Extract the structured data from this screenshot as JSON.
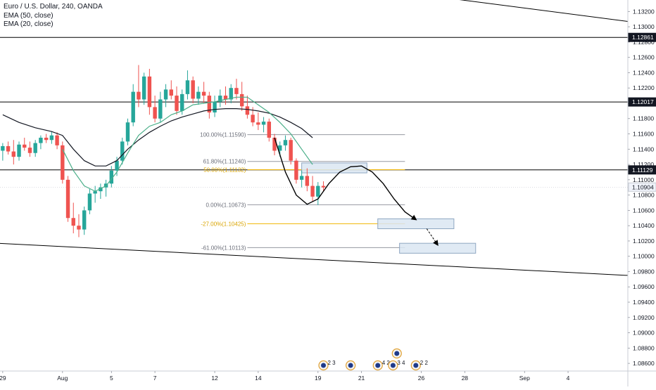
{
  "header": {
    "title": "Euro / U.S. Dollar, 240, OANDA",
    "indicators": [
      "EMA (50, close)",
      "EMA (20, close)"
    ]
  },
  "colors": {
    "up": "#26a69a",
    "down": "#ef5350",
    "ema50": "#131722",
    "ema20": "#4caf8a",
    "fib_line": "#9598a1",
    "fib_gold": "#f0b400",
    "box_fill": "#dbe6f2",
    "box_stroke": "#8fa7c2",
    "hline": "#000000",
    "price_tag_dark": "#131722"
  },
  "price_axis": {
    "ticks": [
      "1.13200",
      "1.13000",
      "1.12800",
      "1.12600",
      "1.12400",
      "1.12200",
      "1.12000",
      "1.11800",
      "1.11600",
      "1.11400",
      "1.11200",
      "1.11000",
      "1.10800",
      "1.10600",
      "1.10400",
      "1.10200",
      "1.10000",
      "1.09800",
      "1.09600",
      "1.09400",
      "1.09200",
      "1.09000",
      "1.08800",
      "1.08600"
    ],
    "tags": [
      {
        "value": 1.12861,
        "label": "1.12861",
        "style": "dark"
      },
      {
        "value": 1.12017,
        "label": "1.12017",
        "style": "dark"
      },
      {
        "value": 1.11129,
        "label": "1.11129",
        "style": "dark"
      },
      {
        "value": 1.10904,
        "label": "1.10904",
        "style": "light"
      }
    ]
  },
  "time_axis": {
    "labels": [
      {
        "index": 0,
        "text": "29"
      },
      {
        "index": 11,
        "text": "Aug"
      },
      {
        "index": 20,
        "text": "5"
      },
      {
        "index": 28,
        "text": "7"
      },
      {
        "index": 39,
        "text": "12"
      },
      {
        "index": 47,
        "text": "14"
      },
      {
        "index": 58,
        "text": "19"
      },
      {
        "index": 66,
        "text": "21"
      },
      {
        "index": 77,
        "text": "26"
      },
      {
        "index": 85,
        "text": "28"
      },
      {
        "index": 96,
        "text": "Sep"
      },
      {
        "index": 104,
        "text": "4"
      }
    ]
  },
  "chart_data": {
    "type": "candlestick",
    "title": "Euro / U.S. Dollar, 240, OANDA",
    "ylim": [
      1.085,
      1.1335
    ],
    "x_range_index": [
      -0.5,
      115
    ],
    "candles": [
      {
        "o": 1.1138,
        "h": 1.1148,
        "l": 1.1125,
        "c": 1.1144
      },
      {
        "o": 1.1144,
        "h": 1.115,
        "l": 1.1133,
        "c": 1.1137
      },
      {
        "o": 1.1137,
        "h": 1.1152,
        "l": 1.112,
        "c": 1.113
      },
      {
        "o": 1.113,
        "h": 1.115,
        "l": 1.1125,
        "c": 1.1146
      },
      {
        "o": 1.1146,
        "h": 1.1155,
        "l": 1.1138,
        "c": 1.1142
      },
      {
        "o": 1.1142,
        "h": 1.115,
        "l": 1.113,
        "c": 1.1135
      },
      {
        "o": 1.1135,
        "h": 1.1152,
        "l": 1.113,
        "c": 1.1148
      },
      {
        "o": 1.1148,
        "h": 1.1158,
        "l": 1.114,
        "c": 1.1155
      },
      {
        "o": 1.1155,
        "h": 1.116,
        "l": 1.1148,
        "c": 1.1152
      },
      {
        "o": 1.1152,
        "h": 1.1163,
        "l": 1.1147,
        "c": 1.1158
      },
      {
        "o": 1.1158,
        "h": 1.1162,
        "l": 1.114,
        "c": 1.1145
      },
      {
        "o": 1.1145,
        "h": 1.115,
        "l": 1.1095,
        "c": 1.11
      },
      {
        "o": 1.11,
        "h": 1.1105,
        "l": 1.1045,
        "c": 1.105
      },
      {
        "o": 1.105,
        "h": 1.107,
        "l": 1.103,
        "c": 1.104
      },
      {
        "o": 1.104,
        "h": 1.1055,
        "l": 1.1025,
        "c": 1.1035
      },
      {
        "o": 1.1035,
        "h": 1.1065,
        "l": 1.1028,
        "c": 1.106
      },
      {
        "o": 1.106,
        "h": 1.1088,
        "l": 1.1055,
        "c": 1.1082
      },
      {
        "o": 1.1082,
        "h": 1.1092,
        "l": 1.107,
        "c": 1.1085
      },
      {
        "o": 1.1085,
        "h": 1.1095,
        "l": 1.1075,
        "c": 1.109
      },
      {
        "o": 1.109,
        "h": 1.11,
        "l": 1.1078,
        "c": 1.1095
      },
      {
        "o": 1.1095,
        "h": 1.1118,
        "l": 1.109,
        "c": 1.1112
      },
      {
        "o": 1.1112,
        "h": 1.113,
        "l": 1.1105,
        "c": 1.1125
      },
      {
        "o": 1.1125,
        "h": 1.1155,
        "l": 1.112,
        "c": 1.115
      },
      {
        "o": 1.115,
        "h": 1.118,
        "l": 1.1145,
        "c": 1.1175
      },
      {
        "o": 1.1175,
        "h": 1.1225,
        "l": 1.117,
        "c": 1.1215
      },
      {
        "o": 1.1215,
        "h": 1.125,
        "l": 1.1195,
        "c": 1.1205
      },
      {
        "o": 1.1205,
        "h": 1.124,
        "l": 1.1198,
        "c": 1.1235
      },
      {
        "o": 1.1235,
        "h": 1.1245,
        "l": 1.1185,
        "c": 1.1195
      },
      {
        "o": 1.1195,
        "h": 1.121,
        "l": 1.1175,
        "c": 1.118
      },
      {
        "o": 1.118,
        "h": 1.1215,
        "l": 1.1175,
        "c": 1.1205
      },
      {
        "o": 1.1205,
        "h": 1.1225,
        "l": 1.1195,
        "c": 1.1218
      },
      {
        "o": 1.1218,
        "h": 1.123,
        "l": 1.1205,
        "c": 1.121
      },
      {
        "o": 1.121,
        "h": 1.1222,
        "l": 1.1185,
        "c": 1.119
      },
      {
        "o": 1.119,
        "h": 1.1218,
        "l": 1.1185,
        "c": 1.1212
      },
      {
        "o": 1.1212,
        "h": 1.1243,
        "l": 1.1205,
        "c": 1.123
      },
      {
        "o": 1.123,
        "h": 1.1235,
        "l": 1.12,
        "c": 1.1206
      },
      {
        "o": 1.1206,
        "h": 1.1222,
        "l": 1.1198,
        "c": 1.1215
      },
      {
        "o": 1.1215,
        "h": 1.1228,
        "l": 1.12,
        "c": 1.121
      },
      {
        "o": 1.121,
        "h": 1.1215,
        "l": 1.118,
        "c": 1.1188
      },
      {
        "o": 1.1188,
        "h": 1.121,
        "l": 1.1182,
        "c": 1.1202
      },
      {
        "o": 1.1202,
        "h": 1.1218,
        "l": 1.1195,
        "c": 1.121
      },
      {
        "o": 1.121,
        "h": 1.1222,
        "l": 1.1198,
        "c": 1.1205
      },
      {
        "o": 1.1205,
        "h": 1.1225,
        "l": 1.12,
        "c": 1.122
      },
      {
        "o": 1.122,
        "h": 1.1232,
        "l": 1.1205,
        "c": 1.1212
      },
      {
        "o": 1.1212,
        "h": 1.1228,
        "l": 1.119,
        "c": 1.1196
      },
      {
        "o": 1.1196,
        "h": 1.121,
        "l": 1.118,
        "c": 1.1185
      },
      {
        "o": 1.1185,
        "h": 1.1195,
        "l": 1.117,
        "c": 1.1175
      },
      {
        "o": 1.1175,
        "h": 1.1188,
        "l": 1.1165,
        "c": 1.1172
      },
      {
        "o": 1.1172,
        "h": 1.1182,
        "l": 1.1162,
        "c": 1.1176
      },
      {
        "o": 1.1176,
        "h": 1.118,
        "l": 1.115,
        "c": 1.1155
      },
      {
        "o": 1.1155,
        "h": 1.116,
        "l": 1.1132,
        "c": 1.1138
      },
      {
        "o": 1.1138,
        "h": 1.115,
        "l": 1.113,
        "c": 1.1145
      },
      {
        "o": 1.1145,
        "h": 1.1158,
        "l": 1.1138,
        "c": 1.1152
      },
      {
        "o": 1.1152,
        "h": 1.1155,
        "l": 1.112,
        "c": 1.1125
      },
      {
        "o": 1.1125,
        "h": 1.1128,
        "l": 1.1095,
        "c": 1.11
      },
      {
        "o": 1.11,
        "h": 1.1112,
        "l": 1.109,
        "c": 1.1105
      },
      {
        "o": 1.1105,
        "h": 1.1115,
        "l": 1.1085,
        "c": 1.1092
      },
      {
        "o": 1.1092,
        "h": 1.1105,
        "l": 1.1072,
        "c": 1.1078
      },
      {
        "o": 1.1078,
        "h": 1.1097,
        "l": 1.1067,
        "c": 1.1092
      },
      {
        "o": 1.1092,
        "h": 1.1098,
        "l": 1.1085,
        "c": 1.109
      }
    ],
    "ema50": [
      [
        0,
        1.1185
      ],
      [
        3,
        1.1175
      ],
      [
        6,
        1.1168
      ],
      [
        9,
        1.1163
      ],
      [
        11,
        1.1158
      ],
      [
        13,
        1.114
      ],
      [
        15,
        1.1125
      ],
      [
        17,
        1.1118
      ],
      [
        19,
        1.1118
      ],
      [
        21,
        1.1125
      ],
      [
        23,
        1.114
      ],
      [
        25,
        1.1152
      ],
      [
        27,
        1.1162
      ],
      [
        29,
        1.117
      ],
      [
        31,
        1.1177
      ],
      [
        33,
        1.1182
      ],
      [
        35,
        1.1186
      ],
      [
        37,
        1.119
      ],
      [
        39,
        1.1192
      ],
      [
        41,
        1.1193
      ],
      [
        43,
        1.1193
      ],
      [
        45,
        1.1192
      ],
      [
        47,
        1.119
      ],
      [
        49,
        1.1187
      ],
      [
        51,
        1.1182
      ],
      [
        53,
        1.1175
      ],
      [
        55,
        1.1167
      ],
      [
        57,
        1.1155
      ]
    ],
    "ema20": [
      [
        11,
        1.114
      ],
      [
        13,
        1.1112
      ],
      [
        15,
        1.1092
      ],
      [
        17,
        1.1085
      ],
      [
        19,
        1.1092
      ],
      [
        21,
        1.111
      ],
      [
        23,
        1.1135
      ],
      [
        25,
        1.1158
      ],
      [
        27,
        1.117
      ],
      [
        29,
        1.1175
      ],
      [
        31,
        1.1185
      ],
      [
        33,
        1.119
      ],
      [
        35,
        1.1198
      ],
      [
        37,
        1.12
      ],
      [
        39,
        1.1202
      ],
      [
        41,
        1.1205
      ],
      [
        43,
        1.1208
      ],
      [
        45,
        1.1208
      ],
      [
        47,
        1.1198
      ],
      [
        49,
        1.1188
      ],
      [
        51,
        1.1175
      ],
      [
        53,
        1.116
      ],
      [
        55,
        1.114
      ],
      [
        57,
        1.112
      ]
    ],
    "horizontal_lines": [
      1.12861,
      1.12017,
      1.11129
    ],
    "current_price": 1.10904,
    "fibonacci": {
      "x_start": 45,
      "x_end": 74,
      "levels": [
        {
          "label": "100.00%(1.11590)",
          "value": 1.1159,
          "color": "gray"
        },
        {
          "label": "61.80%(1.11240)",
          "value": 1.1124,
          "color": "gray"
        },
        {
          "label": "50.00%(1.11132)",
          "value": 1.11132,
          "color": "gold"
        },
        {
          "label": "0.00%(1.10673)",
          "value": 1.10673,
          "color": "gray"
        },
        {
          "label": "-27.00%(1.10425)",
          "value": 1.10425,
          "color": "gold"
        },
        {
          "label": "-61.00%(1.10113)",
          "value": 1.10113,
          "color": "gray"
        }
      ]
    },
    "trendlines": [
      {
        "from": [
          -1,
          1.1017
        ],
        "to": [
          115,
          1.0975
        ]
      },
      {
        "from": [
          66,
          1.1352
        ],
        "to": [
          115,
          1.1307
        ]
      }
    ],
    "zones": [
      {
        "x0": 55,
        "x1": 67,
        "y0": 1.1109,
        "y1": 1.1122
      },
      {
        "x0": 69,
        "x1": 83,
        "y0": 1.1036,
        "y1": 1.1049
      },
      {
        "x0": 73,
        "x1": 87,
        "y0": 1.1004,
        "y1": 1.1017
      }
    ],
    "projection": {
      "curve": [
        [
          50,
          1.1155
        ],
        [
          52,
          1.111
        ],
        [
          54,
          1.108
        ],
        [
          56,
          1.1068
        ],
        [
          58,
          1.1075
        ],
        [
          60,
          1.1095
        ],
        [
          62,
          1.111
        ],
        [
          64,
          1.1117
        ],
        [
          66,
          1.1118
        ],
        [
          68,
          1.111
        ],
        [
          70,
          1.1095
        ],
        [
          72,
          1.1075
        ],
        [
          74,
          1.1058
        ],
        [
          76,
          1.1048
        ]
      ],
      "arrow2": [
        [
          78,
          1.1036
        ],
        [
          80,
          1.1015
        ]
      ]
    },
    "events": [
      {
        "index": 59,
        "text": "2 3",
        "row": 0
      },
      {
        "index": 64,
        "text": "",
        "row": 0
      },
      {
        "index": 69,
        "text": "4 2",
        "row": 0
      },
      {
        "index": 71.8,
        "text": "3 4",
        "row": 0
      },
      {
        "index": 72.5,
        "text": "",
        "row": 1
      },
      {
        "index": 76,
        "text": "2 2",
        "row": 0
      }
    ]
  }
}
